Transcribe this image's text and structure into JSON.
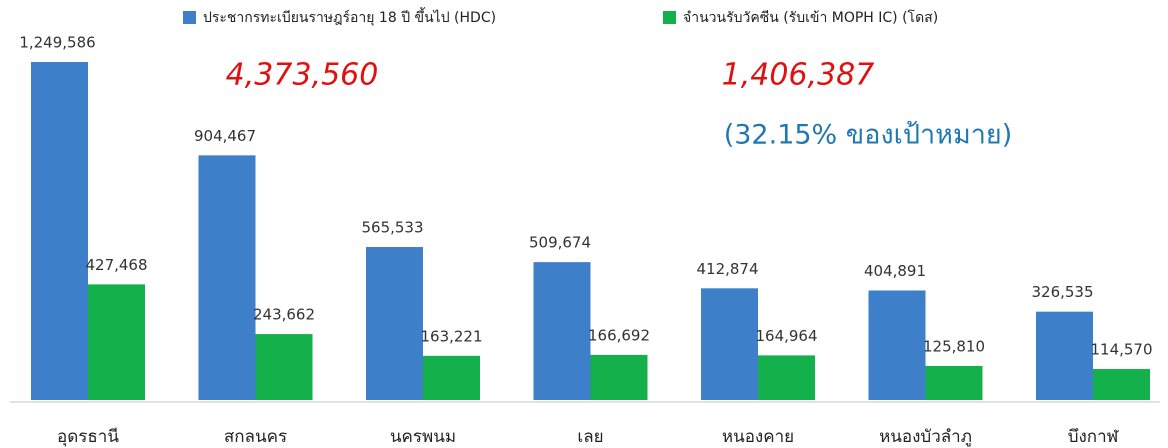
{
  "chart_data": {
    "type": "bar",
    "categories": [
      "อุดรธานี",
      "สกลนคร",
      "นครพนม",
      "เลย",
      "หนองคาย",
      "หนองบัวลำภู",
      "บึงกาฬ"
    ],
    "series": [
      {
        "name": "ประชากรทะเบียนราษฎร์อายุ 18 ปี ขึ้นไป (HDC)",
        "color": "#3d7fc8",
        "values": [
          1249586,
          904467,
          565533,
          509674,
          412874,
          404891,
          326535
        ],
        "value_labels": [
          "1,249,586",
          "904,467",
          "565,533",
          "509,674",
          "412,874",
          "404,891",
          "326,535"
        ]
      },
      {
        "name": "จำนวนรับวัคซีน (รับเข้า MOPH IC) (โดส)",
        "color": "#14b04c",
        "values": [
          427468,
          243662,
          163221,
          166692,
          164964,
          125810,
          114570
        ],
        "value_labels": [
          "427,468",
          "243,662",
          "163,221",
          "166,692",
          "164,964",
          "125,810",
          "114,570"
        ]
      }
    ],
    "annotations": [
      "4,373,560",
      "1,406,387",
      "(32.15% ของเป้าหมาย)"
    ]
  }
}
